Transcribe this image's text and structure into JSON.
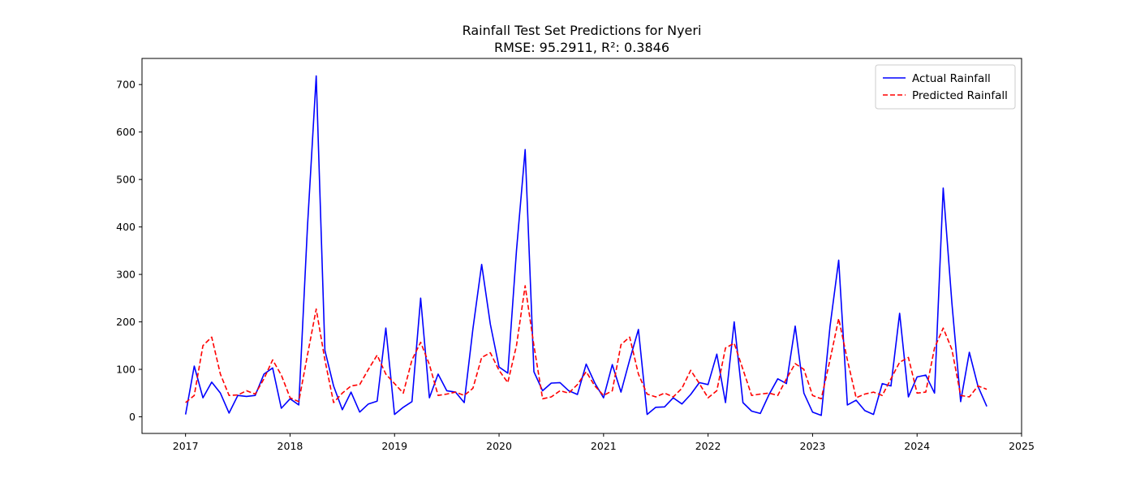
{
  "chart_data": {
    "type": "line",
    "title": "Rainfall Test Set Predictions for Nyeri",
    "subtitle": "RMSE: 95.2911, R²: 0.3846",
    "xlabel": "",
    "ylabel": "",
    "x_start": "2017-01",
    "x_step": "month",
    "x_tick_labels": [
      "2017",
      "2018",
      "2019",
      "2020",
      "2021",
      "2022",
      "2023",
      "2024",
      "2025"
    ],
    "y_ticks": [
      0,
      100,
      200,
      300,
      400,
      500,
      600,
      700
    ],
    "xlim": [
      "2016-08",
      "2025-01"
    ],
    "ylim": [
      -35,
      755
    ],
    "grid": false,
    "legend_position": "top-right",
    "series": [
      {
        "name": "Actual Rainfall",
        "color": "#0000ff",
        "style": "solid",
        "values": [
          5,
          107,
          40,
          73,
          50,
          8,
          45,
          43,
          45,
          90,
          103,
          18,
          38,
          25,
          400,
          718,
          140,
          65,
          15,
          52,
          10,
          27,
          33,
          187,
          5,
          20,
          32,
          250,
          40,
          90,
          55,
          52,
          30,
          185,
          321,
          195,
          105,
          92,
          350,
          563,
          95,
          55,
          71,
          72,
          55,
          47,
          111,
          71,
          40,
          110,
          52,
          120,
          184,
          5,
          20,
          21,
          40,
          27,
          47,
          72,
          68,
          132,
          30,
          200,
          30,
          12,
          7,
          47,
          80,
          70,
          191,
          50,
          10,
          3,
          190,
          330,
          25,
          35,
          13,
          5,
          70,
          65,
          218,
          42,
          84,
          88,
          50,
          482,
          240,
          32,
          136,
          64,
          22
        ]
      },
      {
        "name": "Predicted Rainfall",
        "color": "#ff0000",
        "style": "dashed",
        "values": [
          30,
          45,
          150,
          168,
          90,
          45,
          46,
          55,
          48,
          80,
          120,
          88,
          40,
          32,
          130,
          227,
          120,
          30,
          50,
          65,
          68,
          100,
          130,
          90,
          70,
          50,
          120,
          157,
          110,
          45,
          48,
          52,
          45,
          60,
          125,
          135,
          98,
          72,
          150,
          276,
          150,
          38,
          42,
          55,
          50,
          68,
          95,
          65,
          45,
          55,
          152,
          168,
          90,
          48,
          42,
          50,
          42,
          60,
          98,
          70,
          40,
          55,
          145,
          155,
          100,
          45,
          48,
          50,
          45,
          80,
          112,
          100,
          45,
          38,
          120,
          207,
          120,
          40,
          48,
          52,
          45,
          80,
          115,
          125,
          50,
          52,
          145,
          187,
          142,
          45,
          42,
          65,
          58
        ]
      }
    ]
  }
}
